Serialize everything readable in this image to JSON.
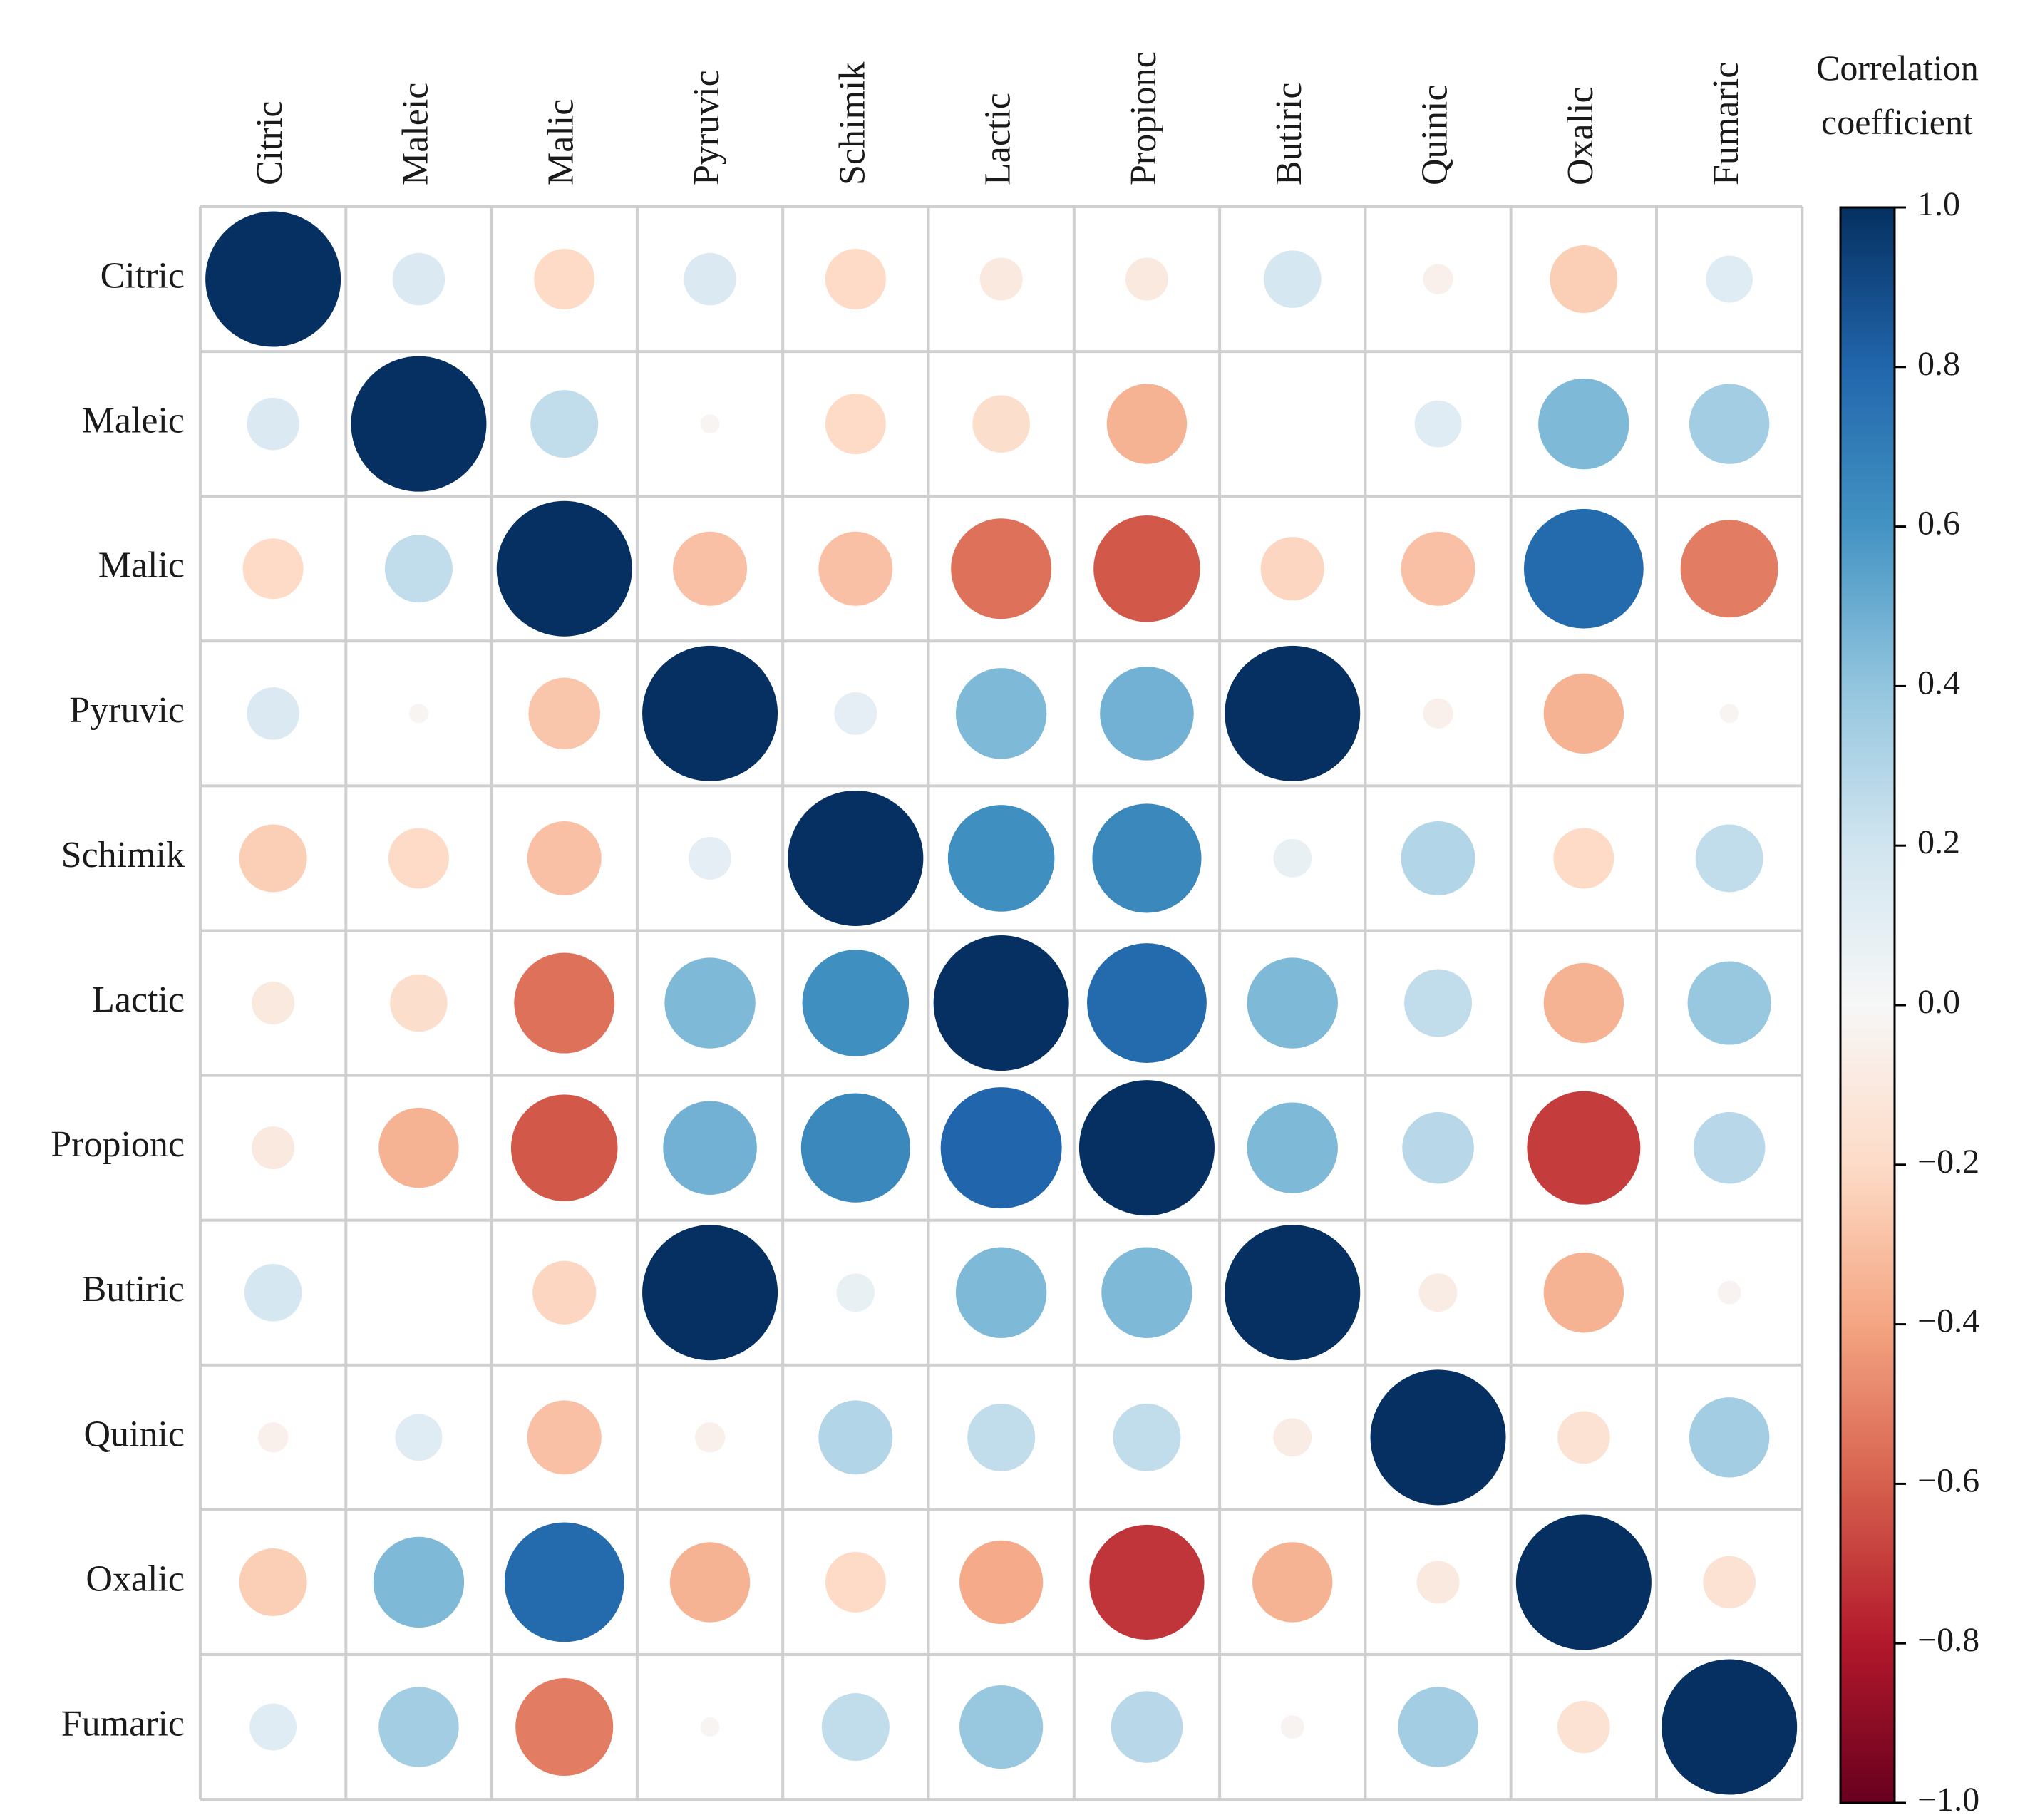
{
  "chart_data": {
    "type": "heatmap",
    "style": "circle-correlation-matrix",
    "variables": [
      "Citric",
      "Maleic",
      "Malic",
      "Pyruvic",
      "Schimik",
      "Lactic",
      "Propionc",
      "Butiric",
      "Quinic",
      "Oxalic",
      "Fumaric"
    ],
    "row_labels": [
      "Citric",
      "Maleic",
      "Malic",
      "Pyruvic",
      "Schimik",
      "Lactic",
      "Propionc",
      "Butiric",
      "Quinic",
      "Oxalic",
      "Fumaric"
    ],
    "col_labels": [
      "Citric",
      "Maleic",
      "Malic",
      "Pyruvic",
      "Schimik",
      "Lactic",
      "Propionc",
      "Butiric",
      "Quinic",
      "Oxalic",
      "Fumaric"
    ],
    "matrix": [
      [
        1.0,
        0.15,
        -0.2,
        0.15,
        -0.2,
        -0.1,
        -0.1,
        0.18,
        -0.05,
        -0.25,
        0.12
      ],
      [
        0.15,
        1.0,
        0.25,
        -0.02,
        -0.2,
        -0.18,
        -0.35,
        0.0,
        0.12,
        0.45,
        0.35
      ],
      [
        -0.2,
        0.25,
        1.0,
        -0.3,
        -0.3,
        -0.55,
        -0.62,
        -0.22,
        -0.3,
        0.78,
        -0.52
      ],
      [
        0.15,
        -0.02,
        -0.28,
        1.0,
        0.1,
        0.45,
        0.48,
        1.0,
        -0.05,
        -0.35,
        -0.02
      ],
      [
        -0.25,
        -0.2,
        -0.3,
        0.1,
        1.0,
        0.62,
        0.65,
        0.08,
        0.3,
        -0.2,
        0.25
      ],
      [
        -0.1,
        -0.18,
        -0.55,
        0.45,
        0.62,
        1.0,
        0.78,
        0.45,
        0.25,
        -0.35,
        0.38
      ],
      [
        -0.1,
        -0.35,
        -0.62,
        0.48,
        0.65,
        0.8,
        1.0,
        0.45,
        0.28,
        -0.7,
        0.28
      ],
      [
        0.18,
        0.0,
        -0.22,
        1.0,
        0.08,
        0.45,
        0.45,
        1.0,
        -0.08,
        -0.35,
        -0.03
      ],
      [
        -0.05,
        0.12,
        -0.3,
        -0.05,
        0.3,
        0.25,
        0.25,
        -0.08,
        1.0,
        -0.15,
        0.35
      ],
      [
        -0.25,
        0.45,
        0.78,
        -0.35,
        -0.2,
        -0.38,
        -0.72,
        -0.35,
        -0.1,
        1.0,
        -0.15
      ],
      [
        0.12,
        0.35,
        -0.52,
        -0.02,
        0.25,
        0.38,
        0.28,
        -0.03,
        0.35,
        -0.15,
        1.0
      ]
    ],
    "colorbar": {
      "title_line1": "Correlation",
      "title_line2": "coefficient",
      "range": [
        -1.0,
        1.0
      ],
      "ticks": [
        {
          "value": 1.0,
          "label": "1.0"
        },
        {
          "value": 0.8,
          "label": "0.8"
        },
        {
          "value": 0.6,
          "label": "0.6"
        },
        {
          "value": 0.4,
          "label": "0.4"
        },
        {
          "value": 0.2,
          "label": "0.2"
        },
        {
          "value": 0.0,
          "label": "0.0"
        },
        {
          "value": -0.2,
          "label": "−0.2"
        },
        {
          "value": -0.4,
          "label": "−0.4"
        },
        {
          "value": -0.6,
          "label": "−0.6"
        },
        {
          "value": -0.8,
          "label": "−0.8"
        },
        {
          "value": -1.0,
          "label": "−1.0"
        }
      ],
      "colors": {
        "neg_end": "#67001f",
        "neg_mid": "#d6604d",
        "neg_light": "#fddbc7",
        "zero": "#ffffff",
        "pos_light": "#d1e5f0",
        "pos_mid": "#4393c3",
        "pos_end": "#053061"
      }
    },
    "grid": true,
    "legend": "right"
  }
}
